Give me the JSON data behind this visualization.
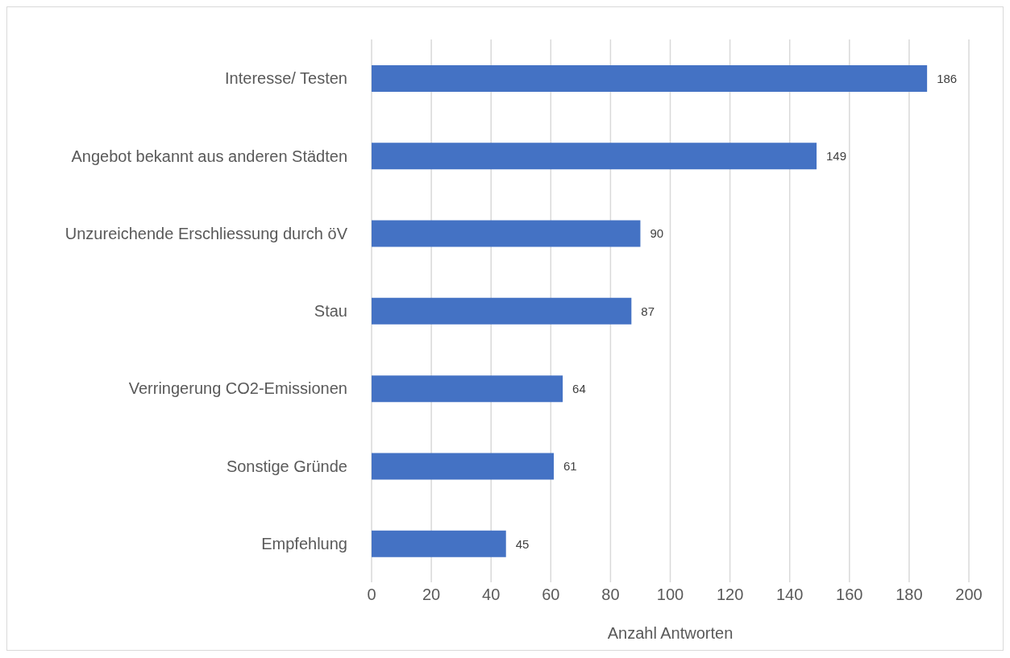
{
  "chart_data": {
    "type": "bar",
    "orientation": "horizontal",
    "categories": [
      "Interesse/ Testen",
      "Angebot bekannt aus anderen Städten",
      "Unzureichende Erschliessung durch öV",
      "Stau",
      "Verringerung CO2-Emissionen",
      "Sonstige Gründe",
      "Empfehlung"
    ],
    "values": [
      186,
      149,
      90,
      87,
      64,
      61,
      45
    ],
    "color": "#4472c4",
    "xlabel": "Anzahl Antworten",
    "xlim": [
      0,
      200
    ],
    "xticks": [
      0,
      20,
      40,
      60,
      80,
      100,
      120,
      140,
      160,
      180,
      200
    ],
    "grid": "x",
    "data_labels": true
  }
}
